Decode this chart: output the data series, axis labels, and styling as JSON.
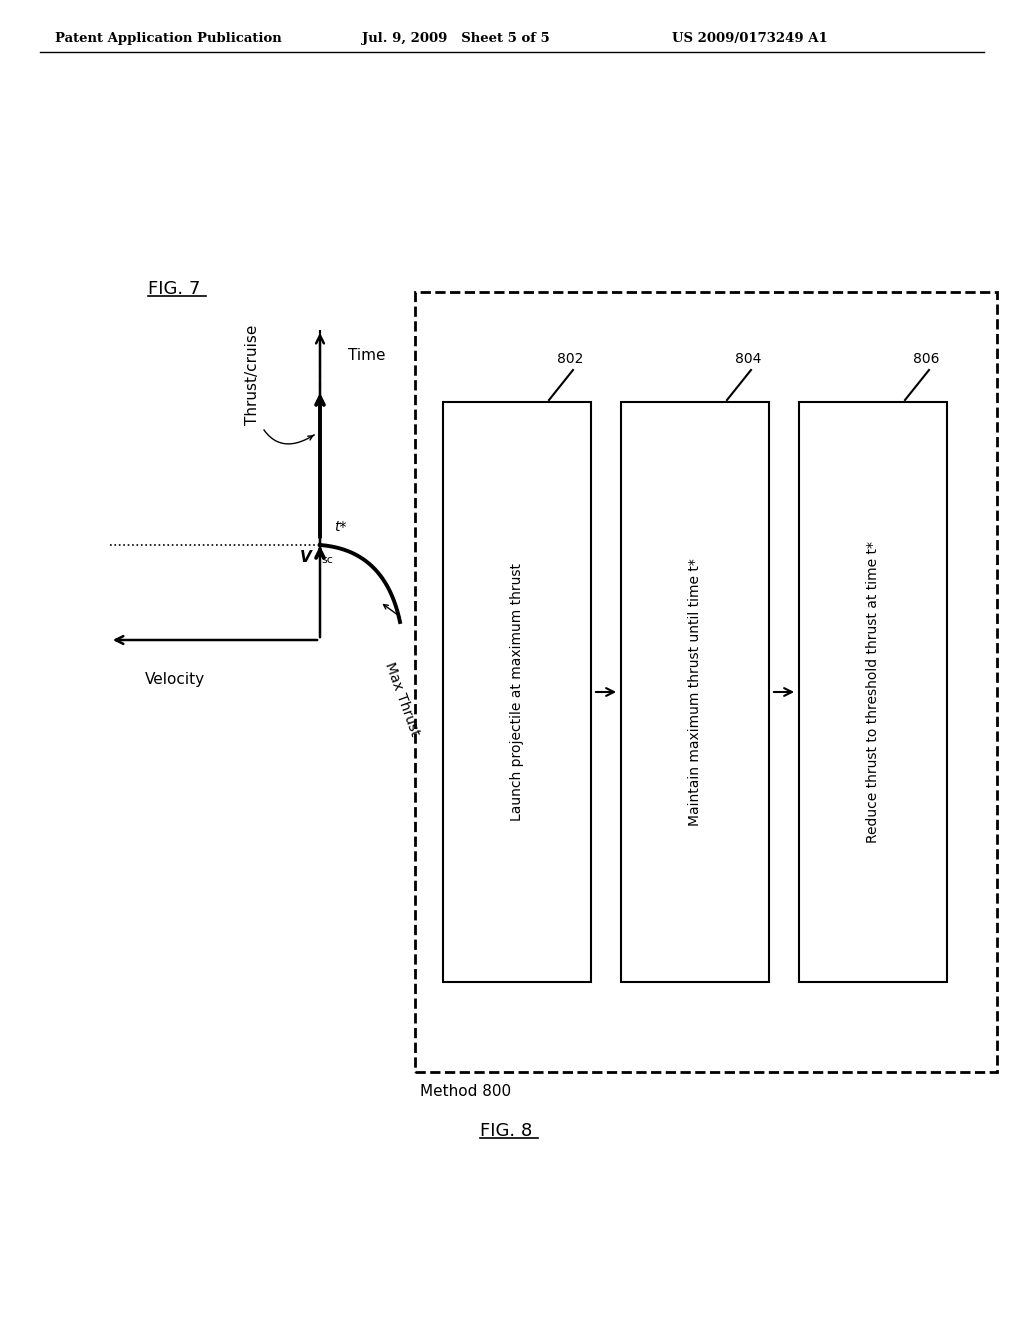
{
  "bg_color": "#ffffff",
  "header_left": "Patent Application Publication",
  "header_mid": "Jul. 9, 2009   Sheet 5 of 5",
  "header_right": "US 2009/0173249 A1",
  "fig7_label": "FIG. 7",
  "fig8_label": "FIG. 8",
  "fig7_axis_time": "Time",
  "fig7_axis_velocity": "Velocity",
  "fig7_label_thrust_cruise": "Thrust/cruise",
  "fig7_label_vsc": "V",
  "fig7_label_vsc_sub": "sc",
  "fig7_label_tstar": "t*",
  "fig7_label_maxthrust": "Max Thrust",
  "method_label": "Method 800",
  "box1_label": "802",
  "box2_label": "804",
  "box3_label": "806",
  "box1_text": "Launch projectile at maximum thrust",
  "box2_text": "Maintain maximum thrust until time t*",
  "box3_text": "Reduce thrust to threshold thrust at time t*"
}
